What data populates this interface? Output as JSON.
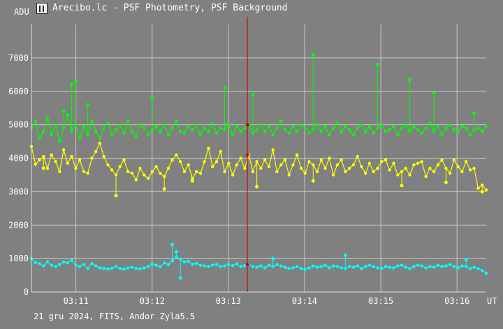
{
  "window": {
    "title": "Arecibo.lc - PSF Photometry, PSF Background",
    "footer": "21 gru 2024, FITS, Andor Zyla5.5",
    "icon": "app-icon"
  },
  "chart_data": {
    "type": "line",
    "ylabel": "ADU",
    "xlabel": "UT",
    "ylim": [
      0,
      8000
    ],
    "xlim": [
      "03:10:25",
      "03:16:23"
    ],
    "y_ticks": [
      0,
      1000,
      2000,
      3000,
      4000,
      5000,
      6000,
      7000
    ],
    "x_ticks": [
      "03:11",
      "03:12",
      "03:13",
      "03:14",
      "03:15",
      "03:16"
    ],
    "grid": true,
    "cursor_time": "03:13:15",
    "colors": {
      "background": "#808080",
      "grid": "#c8c8c8",
      "cursor": "#cc0000",
      "series_green": "#00ff00",
      "series_yellow": "#ffff00",
      "series_cyan": "#00ffff"
    },
    "series": [
      {
        "color": "#ffff00",
        "values": [
          4350,
          3820,
          3950,
          4050,
          3700,
          4100,
          3900,
          3600,
          4250,
          3850,
          4050,
          3700,
          3950,
          3600,
          3550,
          4000,
          4200,
          4450,
          4050,
          3800,
          3650,
          3500,
          3750,
          3950,
          3600,
          3550,
          3350,
          3700,
          3500,
          3400,
          3600,
          3750,
          3550,
          3450,
          3700,
          3950,
          4100,
          3900,
          3600,
          3800,
          3400,
          3600,
          3550,
          3900,
          4300,
          3750,
          3900,
          4200,
          3600,
          3850,
          3500,
          3800,
          4000,
          3700,
          4100,
          3600,
          3900,
          3700,
          3950,
          3750,
          4250,
          3600,
          3800,
          3950,
          3500,
          3800,
          4100,
          3700,
          3550,
          3900,
          3800,
          3600,
          3950,
          3700,
          4000,
          3500,
          3800,
          3950,
          3600,
          3700,
          3800,
          4050,
          3750,
          3550,
          3850,
          3600,
          3700,
          3900,
          3950,
          3650,
          3850,
          3500,
          3600,
          3700,
          3500,
          3800,
          3850,
          3900,
          3450,
          3700,
          3600,
          3800,
          3950,
          3700,
          3550,
          3950,
          3750,
          3600,
          3900,
          3650,
          3700,
          3100,
          3200,
          3050
        ],
        "markers": [
          [
            3,
            3700
          ],
          [
            21,
            2880
          ],
          [
            33,
            3080
          ],
          [
            40,
            3320
          ],
          [
            56,
            3150
          ],
          [
            70,
            3320
          ],
          [
            92,
            3180
          ],
          [
            103,
            3280
          ],
          [
            112,
            3000
          ]
        ]
      },
      {
        "color": "#00ff00",
        "values": [
          4900,
          5100,
          4600,
          4800,
          5200,
          4700,
          5000,
          4500,
          4900,
          5300,
          4800,
          5000,
          4600,
          4950,
          4700,
          5100,
          4800,
          4600,
          4900,
          5050,
          4700,
          4850,
          5000,
          4750,
          5100,
          4800,
          4650,
          5000,
          4900,
          4700,
          4850,
          4950,
          4800,
          5000,
          4700,
          4900,
          5100,
          4800,
          4750,
          4950,
          4850,
          5000,
          4700,
          4900,
          4800,
          5050,
          4750,
          4900,
          4850,
          5000,
          4700,
          4950,
          4800,
          4900,
          5000,
          4750,
          4850,
          5000,
          4800,
          4950,
          4700,
          4900,
          5100,
          4850,
          4750,
          4950,
          4800,
          5000,
          4900,
          4750,
          4850,
          5000,
          4800,
          4950,
          4700,
          4900,
          5050,
          4800,
          4950,
          4850,
          4700,
          4900,
          5000,
          4800,
          4950,
          4750,
          4900,
          5000,
          4800,
          4850,
          4950,
          4700,
          4900,
          5000,
          4800,
          4950,
          4850,
          4750,
          4900,
          5050,
          4800,
          4950,
          4700,
          4900,
          5000,
          4850,
          4800,
          4950,
          4900,
          4700,
          4850,
          4900,
          4800,
          4950
        ],
        "markers": [
          [
            8,
            5400
          ],
          [
            10,
            6200
          ],
          [
            11,
            6300
          ],
          [
            14,
            5600
          ],
          [
            30,
            5800
          ],
          [
            48,
            6100
          ],
          [
            55,
            5900
          ],
          [
            70,
            7100
          ],
          [
            86,
            6800
          ],
          [
            94,
            6350
          ],
          [
            100,
            5950
          ],
          [
            110,
            5350
          ]
        ]
      },
      {
        "color": "#00ffff",
        "values": [
          1000,
          880,
          850,
          780,
          900,
          800,
          760,
          820,
          900,
          870,
          950,
          800,
          760,
          820,
          700,
          850,
          780,
          720,
          700,
          690,
          710,
          760,
          700,
          680,
          720,
          740,
          700,
          690,
          720,
          760,
          840,
          800,
          750,
          870,
          820,
          930,
          1050,
          980,
          900,
          920,
          830,
          860,
          800,
          780,
          760,
          800,
          830,
          760,
          780,
          820,
          790,
          840,
          760,
          790,
          820,
          760,
          740,
          780,
          720,
          800,
          760,
          820,
          780,
          740,
          700,
          720,
          760,
          700,
          680,
          720,
          780,
          740,
          760,
          800,
          720,
          780,
          760,
          720,
          700,
          760,
          740,
          780,
          700,
          760,
          800,
          760,
          720,
          700,
          760,
          740,
          720,
          780,
          800,
          740,
          700,
          760,
          800,
          780,
          720,
          760,
          740,
          800,
          760,
          780,
          820,
          760,
          720,
          780,
          760,
          700,
          740,
          700,
          640,
          560
        ],
        "markers": [
          [
            35,
            1420
          ],
          [
            36,
            1200
          ],
          [
            37,
            420
          ],
          [
            60,
            1000
          ],
          [
            78,
            1100
          ],
          [
            108,
            960
          ]
        ]
      }
    ]
  }
}
